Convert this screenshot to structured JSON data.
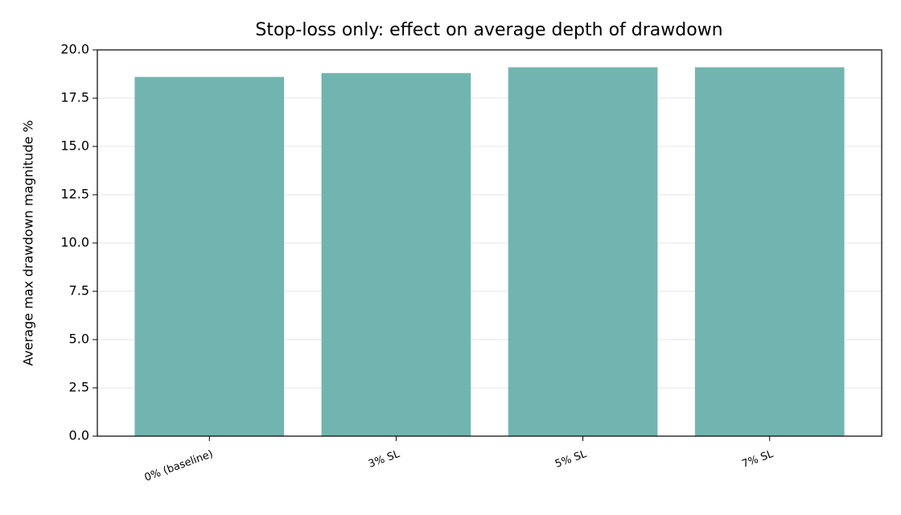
{
  "chart_data": {
    "type": "bar",
    "title": "Stop-loss only: effect on average depth of drawdown",
    "y_label": "Average max drawdown magnitude %",
    "categories": [
      "0% (baseline)",
      "3% SL",
      "5% SL",
      "7% SL"
    ],
    "values": [
      18.6,
      18.8,
      19.1,
      19.1
    ],
    "color": "#72b5b0",
    "ylim": [
      0,
      20
    ],
    "yticks": [
      {
        "value": 0,
        "label": "0.0"
      },
      {
        "value": 2.5,
        "label": "2.5"
      },
      {
        "value": 5,
        "label": "5.0"
      },
      {
        "value": 7.5,
        "label": "7.5"
      },
      {
        "value": 10,
        "label": "10.0"
      },
      {
        "value": 12.5,
        "label": "12.5"
      },
      {
        "value": 15,
        "label": "15.0"
      },
      {
        "value": 17.5,
        "label": "17.5"
      },
      {
        "value": 20,
        "label": "20.0"
      }
    ],
    "grid": true
  }
}
